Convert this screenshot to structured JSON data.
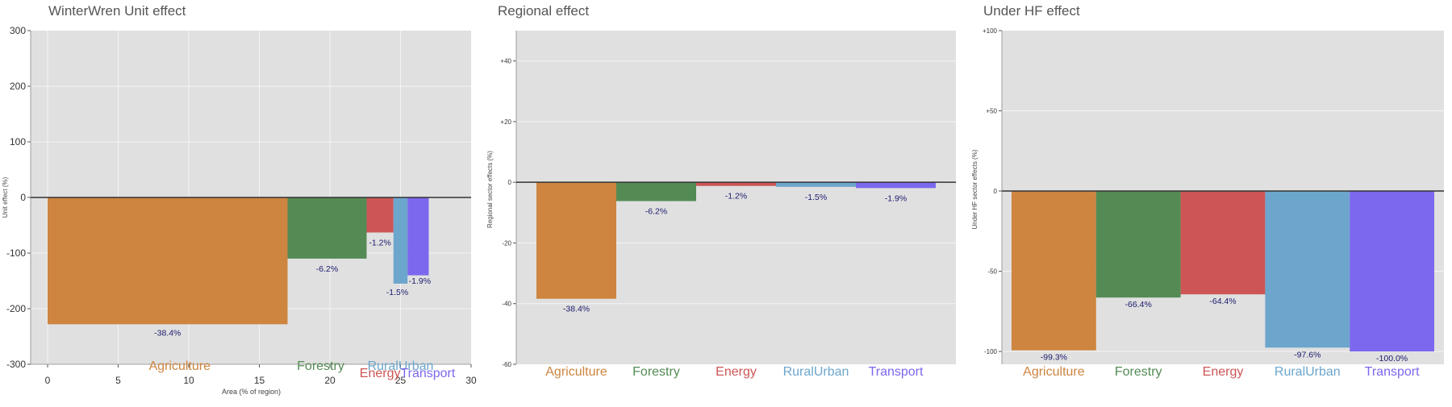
{
  "colors": {
    "Agriculture": "#CD853F",
    "Forestry": "#548B54",
    "Energy": "#CD5555",
    "RuralUrban": "#6CA6CD",
    "Transport": "#7B68EE",
    "panel_bg": "#E0E0E0",
    "grid": "#F4F4F4",
    "zero_line": "#333333",
    "label_text": "#1a1a6e"
  },
  "chart_data": [
    {
      "type": "bar",
      "title": "WinterWren Unit effect",
      "xlabel": "Area (% of region)",
      "ylabel": "Unit effect (%)",
      "ylim": [
        -300,
        300
      ],
      "xlim": [
        -1.2,
        30
      ],
      "grid": true,
      "x_ticks": [
        "0",
        "5",
        "10",
        "15",
        "20",
        "25",
        "30"
      ],
      "y_ticks": [
        "300",
        "200",
        "100",
        "0",
        "-100",
        "-200",
        "-300"
      ],
      "categories": [
        "Agriculture",
        "Forestry",
        "Energy",
        "RuralUrban",
        "Transport"
      ],
      "x_start": [
        0,
        17,
        22.6,
        24.5,
        25.5
      ],
      "x_end": [
        17,
        22.6,
        24.5,
        25.5,
        27
      ],
      "values": [
        -228,
        -110,
        -63,
        -155,
        -140
      ],
      "labels": [
        "-38.4%",
        "-6.2%",
        "-1.2%",
        "-1.5%",
        "-1.9%"
      ]
    },
    {
      "type": "bar",
      "title": "Regional effect",
      "xlabel": "",
      "ylabel": "Regional sector effects (%)",
      "ylim": [
        -60,
        50
      ],
      "grid": true,
      "y_ticks": [
        "+40",
        "+20",
        "0",
        "-20",
        "-40",
        "-60"
      ],
      "categories": [
        "Agriculture",
        "Forestry",
        "Energy",
        "RuralUrban",
        "Transport"
      ],
      "values": [
        -38.4,
        -6.2,
        -1.2,
        -1.5,
        -1.9
      ],
      "labels": [
        "-38.4%",
        "-6.2%",
        "-1.2%",
        "-1.5%",
        "-1.9%"
      ]
    },
    {
      "type": "bar",
      "title": "Under HF effect",
      "xlabel": "",
      "ylabel": "Under HF sector effects (%)",
      "ylim": [
        -108,
        100
      ],
      "grid": true,
      "y_ticks": [
        "+100",
        "+50",
        "0",
        "-50",
        "-100"
      ],
      "categories": [
        "Agriculture",
        "Forestry",
        "Energy",
        "RuralUrban",
        "Transport"
      ],
      "values": [
        -99.3,
        -66.4,
        -64.4,
        -97.6,
        -100.0
      ],
      "labels": [
        "-99.3%",
        "-66.4%",
        "-64.4%",
        "-97.6%",
        "-100.0%"
      ]
    }
  ]
}
